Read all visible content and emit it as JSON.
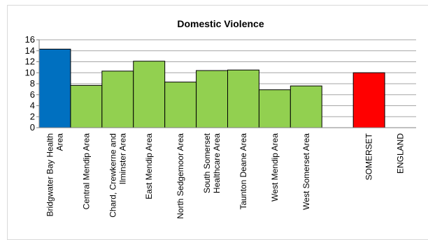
{
  "chart_data": {
    "type": "bar",
    "title": "Domestic Violence",
    "xlabel": "",
    "ylabel": "",
    "ylim": [
      0,
      16
    ],
    "yticks": [
      0,
      2,
      4,
      6,
      8,
      10,
      12,
      14,
      16
    ],
    "grid": true,
    "legend": "none",
    "categories": [
      {
        "lines": [
          "Bridgwater Bay Health",
          "Area"
        ],
        "value": 14.3,
        "color": "#0070c0"
      },
      {
        "lines": [
          "Central Mendip Area"
        ],
        "value": 7.7,
        "color": "#92d050"
      },
      {
        "lines": [
          "Chard, Crewkerne and",
          "Ilminster Area"
        ],
        "value": 10.3,
        "color": "#92d050"
      },
      {
        "lines": [
          "East Mendip Area"
        ],
        "value": 12.1,
        "color": "#92d050"
      },
      {
        "lines": [
          "North Sedgemoor Area"
        ],
        "value": 8.3,
        "color": "#92d050"
      },
      {
        "lines": [
          "South Somerset",
          "Healthcare Area"
        ],
        "value": 10.4,
        "color": "#92d050"
      },
      {
        "lines": [
          "Taunton Deane Area"
        ],
        "value": 10.5,
        "color": "#92d050"
      },
      {
        "lines": [
          "West Mendip Area"
        ],
        "value": 6.9,
        "color": "#92d050"
      },
      {
        "lines": [
          "West Somerset Area"
        ],
        "value": 7.6,
        "color": "#92d050"
      },
      {
        "lines": [
          ""
        ],
        "value": null,
        "color": "#ffffff"
      },
      {
        "lines": [
          "SOMERSET"
        ],
        "value": 10.0,
        "color": "#ff0000"
      },
      {
        "lines": [
          "ENGLAND"
        ],
        "value": null,
        "color": "#ffffff"
      }
    ]
  }
}
